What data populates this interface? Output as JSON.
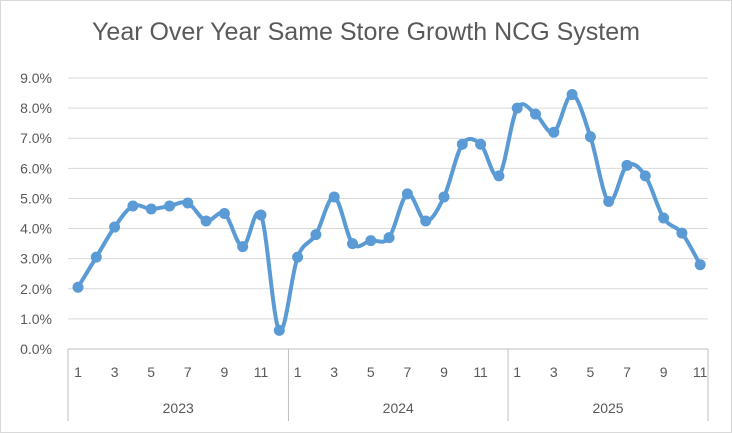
{
  "chart_data": {
    "type": "line",
    "title": "Year Over Year Same Store Growth NCG System",
    "xlabel": "",
    "ylabel": "",
    "ylim": [
      0,
      9
    ],
    "y_ticks": [
      "0.0%",
      "1.0%",
      "2.0%",
      "3.0%",
      "4.0%",
      "5.0%",
      "6.0%",
      "7.0%",
      "8.0%",
      "9.0%"
    ],
    "grid": true,
    "legend": "none",
    "line_color": "#5b9bd5",
    "groups": [
      {
        "label": "2023",
        "months": [
          1,
          2,
          3,
          4,
          5,
          6,
          7,
          8,
          9,
          10,
          11,
          12
        ]
      },
      {
        "label": "2024",
        "months": [
          1,
          2,
          3,
          4,
          5,
          6,
          7,
          8,
          9,
          10,
          11,
          12
        ]
      },
      {
        "label": "2025",
        "months": [
          1,
          2,
          3,
          4,
          5,
          6,
          7,
          8,
          9,
          10,
          11
        ]
      }
    ],
    "month_tick_labels": [
      "1",
      "3",
      "5",
      "7",
      "9",
      "11"
    ],
    "series": [
      {
        "values": [
          2.05,
          3.05,
          4.05,
          4.75,
          4.65,
          4.75,
          4.85,
          4.25,
          4.5,
          3.4,
          4.45,
          0.62,
          3.05,
          3.8,
          5.05,
          3.5,
          3.6,
          3.7,
          5.15,
          4.25,
          5.05,
          6.8,
          6.8,
          5.75,
          8.0,
          7.8,
          7.2,
          8.45,
          7.05,
          4.9,
          6.1,
          5.75,
          4.35,
          3.85,
          2.8
        ]
      }
    ]
  }
}
